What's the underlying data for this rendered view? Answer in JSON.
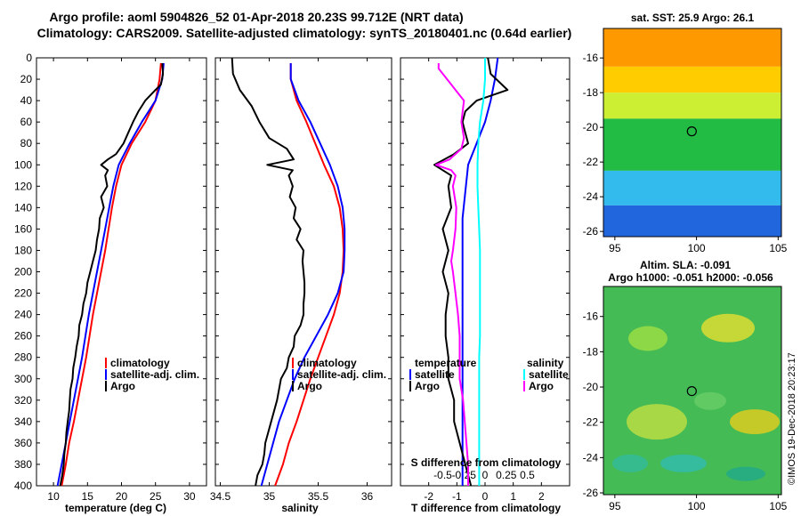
{
  "title": {
    "line1": "Argo profile: aoml 5904826_52 01-Apr-2018 20.23S 99.712E (NRT data)",
    "line2": "Climatology: CARS2009. Satellite-adjusted climatology: synTS_20180401.nc (0.64d earlier)"
  },
  "credit": "©IMOS 19-Dec-2018 20:23:17",
  "colors": {
    "climatology": "#ff0000",
    "satellite": "#0000ff",
    "argo": "#000000",
    "sal_satellite": "#00ffff",
    "sal_argo": "#ff00ff"
  },
  "chart_data": [
    {
      "type": "line",
      "panel": "temperature",
      "xlabel": "temperature (deg C)",
      "xlim": [
        7.5,
        32.5
      ],
      "xticks": [
        10,
        15,
        20,
        25,
        30
      ],
      "xticklabels": [
        "10",
        "15",
        "20",
        "25",
        "30"
      ],
      "ylim": [
        400,
        0
      ],
      "yticks": [
        0,
        20,
        40,
        60,
        80,
        100,
        120,
        140,
        160,
        180,
        200,
        220,
        240,
        260,
        280,
        300,
        320,
        340,
        360,
        380,
        400
      ],
      "yticklabels": [
        "0",
        "20",
        "40",
        "60",
        "80",
        "100",
        "120",
        "140",
        "160",
        "180",
        "200",
        "220",
        "240",
        "260",
        "280",
        "300",
        "320",
        "340",
        "360",
        "380",
        "400"
      ],
      "legend": [
        "climatology",
        "satellite-adj. clim.",
        "Argo"
      ],
      "series": [
        {
          "name": "climatology",
          "color": "#ff0000",
          "depth": [
            5,
            20,
            40,
            60,
            80,
            100,
            120,
            140,
            160,
            180,
            200,
            220,
            240,
            260,
            280,
            300,
            320,
            340,
            360,
            380,
            400
          ],
          "values": [
            25.8,
            25.6,
            25.0,
            23.5,
            21.5,
            20.0,
            19.2,
            18.6,
            18.1,
            17.6,
            17.0,
            16.4,
            15.8,
            15.3,
            14.8,
            14.2,
            13.6,
            13.0,
            12.3,
            11.8,
            11.2
          ]
        },
        {
          "name": "satellite-adj. clim.",
          "color": "#0000ff",
          "depth": [
            5,
            20,
            40,
            60,
            80,
            100,
            120,
            140,
            160,
            180,
            200,
            220,
            240,
            260,
            280,
            300,
            320,
            340,
            360,
            380,
            400
          ],
          "values": [
            26.2,
            26.0,
            25.0,
            23.0,
            21.2,
            19.6,
            18.8,
            18.2,
            17.6,
            17.0,
            16.4,
            15.8,
            15.2,
            14.7,
            14.2,
            13.6,
            13.0,
            12.4,
            11.8,
            11.2,
            10.6
          ]
        },
        {
          "name": "Argo",
          "color": "#000000",
          "depth": [
            5,
            15,
            25,
            30,
            40,
            50,
            60,
            70,
            80,
            90,
            95,
            100,
            105,
            110,
            120,
            130,
            140,
            150,
            160,
            170,
            180,
            190,
            200,
            210,
            220,
            230,
            240,
            250,
            260,
            270,
            280,
            290,
            300,
            310,
            320,
            330,
            340,
            350,
            360,
            370,
            380,
            390,
            400
          ],
          "values": [
            26.0,
            26.1,
            25.8,
            25.0,
            23.5,
            22.5,
            21.7,
            21.0,
            20.3,
            19.2,
            18.0,
            17.0,
            18.0,
            17.6,
            17.9,
            17.0,
            17.4,
            16.8,
            16.7,
            16.4,
            16.2,
            15.8,
            15.4,
            15.0,
            14.8,
            14.4,
            14.2,
            13.8,
            13.7,
            13.4,
            13.2,
            12.9,
            12.8,
            12.5,
            12.4,
            12.3,
            12.1,
            11.9,
            11.8,
            11.6,
            11.5,
            11.3,
            11.0
          ]
        }
      ]
    },
    {
      "type": "line",
      "panel": "salinity",
      "xlabel": "salinity",
      "xlim": [
        34.45,
        36.25
      ],
      "xticks": [
        34.5,
        35,
        35.5,
        36
      ],
      "xticklabels": [
        "34.5",
        "35",
        "35.5",
        "36"
      ],
      "ylim": [
        400,
        0
      ],
      "legend": [
        "climatology",
        "satellite-adj. clim.",
        "Argo"
      ],
      "series": [
        {
          "name": "climatology",
          "color": "#ff0000",
          "depth": [
            5,
            20,
            40,
            60,
            80,
            100,
            120,
            140,
            160,
            180,
            200,
            220,
            240,
            260,
            280,
            300,
            320,
            340,
            360,
            380,
            400
          ],
          "values": [
            35.22,
            35.22,
            35.28,
            35.38,
            35.47,
            35.56,
            35.66,
            35.72,
            35.75,
            35.76,
            35.75,
            35.72,
            35.66,
            35.58,
            35.5,
            35.42,
            35.35,
            35.28,
            35.2,
            35.14,
            35.06
          ]
        },
        {
          "name": "satellite-adj. clim.",
          "color": "#0000ff",
          "depth": [
            5,
            20,
            40,
            60,
            80,
            100,
            120,
            140,
            160,
            180,
            200,
            220,
            240,
            260,
            280,
            300,
            320,
            340,
            360,
            380,
            400
          ],
          "values": [
            35.22,
            35.22,
            35.3,
            35.42,
            35.52,
            35.62,
            35.7,
            35.75,
            35.77,
            35.77,
            35.76,
            35.7,
            35.6,
            35.48,
            35.36,
            35.26,
            35.18,
            35.1,
            35.04,
            34.98,
            34.92
          ]
        },
        {
          "name": "Argo",
          "color": "#000000",
          "depth": [
            0,
            15,
            30,
            45,
            60,
            75,
            85,
            95,
            100,
            105,
            110,
            120,
            130,
            140,
            150,
            160,
            170,
            180,
            190,
            200,
            210,
            220,
            230,
            240,
            250,
            260,
            270,
            280,
            290,
            300,
            310,
            320,
            330,
            340,
            350,
            360,
            370,
            380,
            390,
            400
          ],
          "values": [
            34.62,
            34.63,
            34.7,
            34.82,
            34.9,
            35.0,
            35.18,
            35.25,
            34.98,
            35.24,
            35.2,
            35.24,
            35.21,
            35.27,
            35.25,
            35.32,
            35.28,
            35.35,
            35.34,
            35.35,
            35.36,
            35.36,
            35.35,
            35.35,
            35.32,
            35.26,
            35.25,
            35.2,
            35.18,
            35.12,
            35.1,
            35.08,
            35.05,
            35.02,
            34.99,
            34.96,
            34.95,
            34.93,
            34.88,
            34.86
          ]
        }
      ]
    },
    {
      "type": "line",
      "panel": "difference",
      "xlabel": "T difference from climatology",
      "xlim": [
        -3,
        3
      ],
      "xticks": [
        -2,
        -1,
        0,
        1,
        2
      ],
      "xticklabels": [
        "-2",
        "-1",
        "0",
        "1",
        "2"
      ],
      "top_axis_label": "S difference from climatology",
      "top_ticks": [
        -0.5,
        -0.25,
        0,
        0.25,
        0.5
      ],
      "top_ticklabels": [
        "-0.5",
        "-0.25",
        "0",
        "0.25",
        "0.5"
      ],
      "ylim": [
        400,
        0
      ],
      "legend_headers": [
        "temperature",
        "salinity"
      ],
      "legend": [
        "satellite",
        "Argo",
        "satellite",
        "Argo"
      ],
      "series": [
        {
          "name": "temperature satellite",
          "color": "#0000ff",
          "axis": "T",
          "depth": [
            0,
            20,
            40,
            60,
            80,
            100,
            150,
            200,
            250,
            300,
            350,
            400
          ],
          "values": [
            0.45,
            0.35,
            0.2,
            0.0,
            -0.3,
            -0.6,
            -0.8,
            -0.8,
            -0.8,
            -0.8,
            -0.8,
            -0.8
          ]
        },
        {
          "name": "temperature Argo",
          "color": "#000000",
          "axis": "T",
          "depth": [
            0,
            15,
            25,
            30,
            40,
            50,
            60,
            70,
            80,
            90,
            100,
            110,
            120,
            140,
            160,
            180,
            200,
            220,
            240,
            260,
            280,
            300,
            320,
            340,
            360,
            380,
            400
          ],
          "values": [
            0.1,
            0.2,
            0.6,
            0.8,
            -0.3,
            -0.7,
            -0.8,
            -0.7,
            -0.6,
            -1.1,
            -1.8,
            -1.2,
            -1.3,
            -1.2,
            -1.5,
            -1.3,
            -1.5,
            -1.3,
            -1.4,
            -1.4,
            -1.3,
            -1.3,
            -1.1,
            -1.1,
            -0.9,
            -0.7,
            -0.5
          ]
        },
        {
          "name": "salinity satellite",
          "color": "#00ffff",
          "axis": "S",
          "depth": [
            0,
            20,
            40,
            60,
            80,
            100,
            120,
            140,
            160,
            180,
            200,
            220,
            240,
            260,
            280,
            300,
            320,
            340,
            360,
            380,
            400
          ],
          "values": [
            0.0,
            0.0,
            -0.02,
            -0.06,
            -0.08,
            -0.09,
            -0.09,
            -0.08,
            -0.07,
            -0.06,
            -0.06,
            -0.06,
            -0.06,
            -0.06,
            -0.07,
            -0.07,
            -0.07,
            -0.07,
            -0.07,
            -0.07,
            -0.07
          ]
        },
        {
          "name": "salinity Argo",
          "color": "#ff00ff",
          "axis": "S",
          "depth": [
            5,
            10,
            30,
            40,
            60,
            75,
            85,
            95,
            100,
            105,
            110,
            120,
            140,
            160,
            180,
            190,
            200,
            220,
            240,
            260,
            280,
            300,
            320,
            340,
            360,
            380,
            400
          ],
          "values": [
            -0.55,
            -0.55,
            -0.35,
            -0.25,
            -0.28,
            -0.25,
            -0.28,
            -0.42,
            -0.58,
            -0.4,
            -0.35,
            -0.38,
            -0.34,
            -0.35,
            -0.38,
            -0.4,
            -0.38,
            -0.35,
            -0.32,
            -0.3,
            -0.3,
            -0.3,
            -0.26,
            -0.24,
            -0.22,
            -0.2,
            -0.2
          ]
        }
      ]
    },
    {
      "type": "heatmap",
      "panel": "sst_map",
      "title": "sat. SST: 25.9 Argo: 26.1",
      "xlim": [
        94.3,
        105.2
      ],
      "ylim": [
        -26.3,
        -14.3
      ],
      "xticks": [
        95,
        100,
        105
      ],
      "xticklabels": [
        "95",
        "100",
        "105"
      ],
      "yticks": [
        -16,
        -18,
        -20,
        -22,
        -24,
        -26
      ],
      "yticklabels": [
        "-16",
        "-18",
        "-20",
        "-22",
        "-24",
        "-26"
      ],
      "marker": {
        "lon": 99.712,
        "lat": -20.23
      },
      "colorbands": [
        {
          "lat_from": -14.3,
          "lat_to": -16.5,
          "color": "#ff9900"
        },
        {
          "lat_from": -16.5,
          "lat_to": -18.0,
          "color": "#ffcc00"
        },
        {
          "lat_from": -18.0,
          "lat_to": -19.5,
          "color": "#ccee33"
        },
        {
          "lat_from": -19.5,
          "lat_to": -22.5,
          "color": "#22bb44"
        },
        {
          "lat_from": -22.5,
          "lat_to": -24.5,
          "color": "#33bbee"
        },
        {
          "lat_from": -24.5,
          "lat_to": -26.3,
          "color": "#2266dd"
        }
      ]
    },
    {
      "type": "heatmap",
      "panel": "sla_map",
      "title": "Altim. SLA: -0.091",
      "subtitle": "Argo h1000: -0.051 h2000: -0.056",
      "xlim": [
        94.3,
        105.2
      ],
      "ylim": [
        -26.1,
        -14.3
      ],
      "xticks": [
        95,
        100,
        105
      ],
      "xticklabels": [
        "95",
        "100",
        "105"
      ],
      "yticks": [
        -16,
        -18,
        -20,
        -22,
        -24,
        -26
      ],
      "yticklabels": [
        "-16",
        "-18",
        "-20",
        "-22",
        "-24",
        "-26"
      ],
      "marker": {
        "lon": 99.712,
        "lat": -20.23
      },
      "background_color": "#44bb55"
    }
  ]
}
